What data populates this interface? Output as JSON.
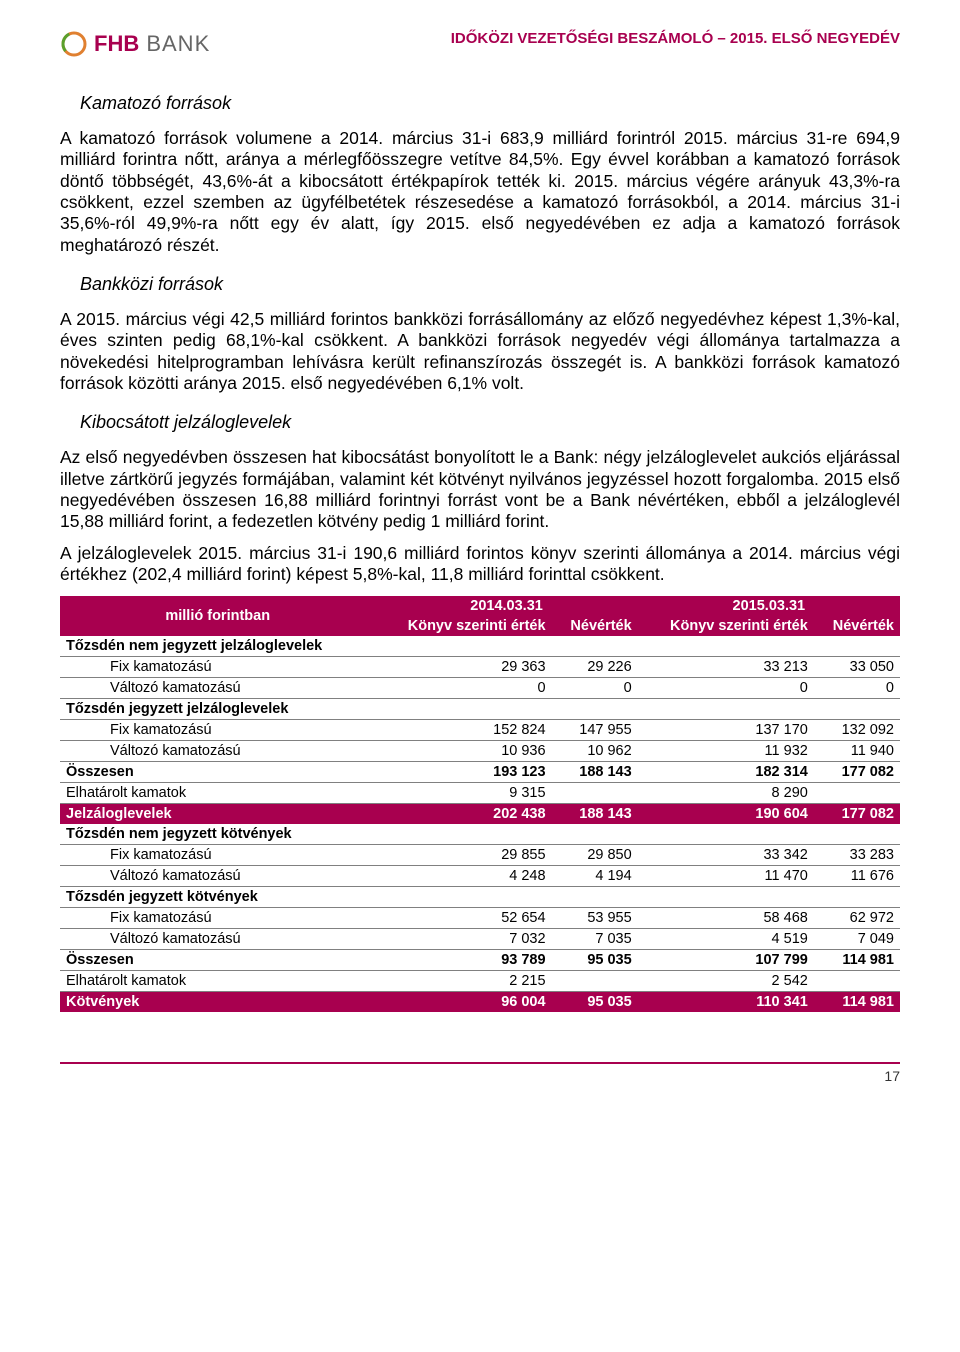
{
  "header": {
    "logo_fhb": "FHB",
    "logo_bank": " BANK",
    "doc_title": "IDŐKÖZI VEZETŐSÉGI BESZÁMOLÓ – 2015. ELSŐ NEGYEDÉV"
  },
  "sections": {
    "s1_title": "Kamatozó források",
    "s1_p1": "A kamatozó források volumene a 2014. március 31-i 683,9 milliárd forintról 2015. március 31-re 694,9 milliárd forintra nőtt, aránya a mérlegfőösszegre vetítve 84,5%. Egy évvel korábban a kamatozó források döntő többségét, 43,6%-át a kibocsátott értékpapírok tették ki. 2015. március végére arányuk 43,3%-ra csökkent, ezzel szemben az ügyfélbetétek részesedése a kamatozó forrásokból, a 2014. március 31-i 35,6%-ról 49,9%-ra nőtt egy év alatt, így 2015. első negyedévében ez adja a kamatozó források meghatározó részét.",
    "s2_title": "Bankközi források",
    "s2_p1": "A 2015. március végi 42,5 milliárd forintos bankközi forrásállomány az előző negyedévhez képest 1,3%-kal, éves szinten pedig 68,1%-kal csökkent. A bankközi források negyedév végi állománya tartalmazza a növekedési hitelprogramban lehívásra került refinanszírozás összegét is. A bankközi források kamatozó források közötti aránya 2015. első negyedévében 6,1% volt.",
    "s3_title": "Kibocsátott jelzáloglevelek",
    "s3_p1": "Az első negyedévben összesen hat kibocsátást bonyolított le a Bank: négy jelzáloglevelet aukciós eljárással illetve zártkörű jegyzés formájában, valamint két kötvényt nyilvános jegyzéssel hozott forgalomba. 2015 első negyedévében összesen 16,88 milliárd forintnyi forrást vont be a Bank névértéken, ebből a jelzáloglevél 15,88 milliárd forint, a fedezetlen kötvény pedig 1 milliárd forint.",
    "s3_p2": "A jelzáloglevelek 2015. március 31-i 190,6 milliárd forintos könyv szerinti állománya a 2014. március végi értékhez (202,4 milliárd forint) képest 5,8%-kal, 11,8 milliárd forinttal csökkent."
  },
  "table": {
    "header_unit": "millió forintban",
    "periods": [
      "2014.03.31",
      "2015.03.31"
    ],
    "cols": [
      "Könyv szerinti érték",
      "Névérték",
      "Könyv szerinti érték",
      "Névérték"
    ],
    "header_color": "#a8004f",
    "border_color": "#808080",
    "rows": [
      {
        "label": "Tőzsdén nem jegyzett jelzáloglevelek",
        "indent": false,
        "bold": true,
        "hi": false,
        "v": [
          "",
          "",
          "",
          ""
        ]
      },
      {
        "label": "Fix kamatozású",
        "indent": true,
        "bold": false,
        "hi": false,
        "v": [
          "29 363",
          "29 226",
          "33 213",
          "33 050"
        ]
      },
      {
        "label": "Változó kamatozású",
        "indent": true,
        "bold": false,
        "hi": false,
        "v": [
          "0",
          "0",
          "0",
          "0"
        ]
      },
      {
        "label": "Tőzsdén jegyzett jelzáloglevelek",
        "indent": false,
        "bold": true,
        "hi": false,
        "v": [
          "",
          "",
          "",
          ""
        ]
      },
      {
        "label": "Fix kamatozású",
        "indent": true,
        "bold": false,
        "hi": false,
        "v": [
          "152 824",
          "147 955",
          "137 170",
          "132 092"
        ]
      },
      {
        "label": "Változó kamatozású",
        "indent": true,
        "bold": false,
        "hi": false,
        "v": [
          "10 936",
          "10 962",
          "11 932",
          "11 940"
        ]
      },
      {
        "label": "Összesen",
        "indent": false,
        "bold": true,
        "hi": false,
        "v": [
          "193 123",
          "188 143",
          "182 314",
          "177 082"
        ]
      },
      {
        "label": "Elhatárolt kamatok",
        "indent": false,
        "bold": false,
        "hi": false,
        "v": [
          "9 315",
          "",
          "8 290",
          ""
        ]
      },
      {
        "label": "Jelzáloglevelek",
        "indent": false,
        "bold": true,
        "hi": true,
        "v": [
          "202 438",
          "188 143",
          "190 604",
          "177 082"
        ]
      },
      {
        "label": "Tőzsdén nem jegyzett kötvények",
        "indent": false,
        "bold": true,
        "hi": false,
        "v": [
          "",
          "",
          "",
          ""
        ]
      },
      {
        "label": "Fix kamatozású",
        "indent": true,
        "bold": false,
        "hi": false,
        "v": [
          "29 855",
          "29 850",
          "33 342",
          "33 283"
        ]
      },
      {
        "label": "Változó kamatozású",
        "indent": true,
        "bold": false,
        "hi": false,
        "v": [
          "4 248",
          "4 194",
          "11 470",
          "11 676"
        ]
      },
      {
        "label": "Tőzsdén jegyzett kötvények",
        "indent": false,
        "bold": true,
        "hi": false,
        "v": [
          "",
          "",
          "",
          ""
        ]
      },
      {
        "label": "Fix kamatozású",
        "indent": true,
        "bold": false,
        "hi": false,
        "v": [
          "52 654",
          "53 955",
          "58 468",
          "62 972"
        ]
      },
      {
        "label": "Változó kamatozású",
        "indent": true,
        "bold": false,
        "hi": false,
        "v": [
          "7 032",
          "7 035",
          "4 519",
          "7 049"
        ]
      },
      {
        "label": "Összesen",
        "indent": false,
        "bold": true,
        "hi": false,
        "v": [
          "93 789",
          "95 035",
          "107 799",
          "114 981"
        ]
      },
      {
        "label": "Elhatárolt kamatok",
        "indent": false,
        "bold": false,
        "hi": false,
        "v": [
          "2 215",
          "",
          "2 542",
          ""
        ]
      },
      {
        "label": "Kötvények",
        "indent": false,
        "bold": true,
        "hi": true,
        "v": [
          "96 004",
          "95 035",
          "110 341",
          "114 981"
        ]
      }
    ]
  },
  "footer": {
    "page_num": "17"
  },
  "colors": {
    "brand": "#a8004f",
    "text": "#000000",
    "grey": "#666666"
  }
}
